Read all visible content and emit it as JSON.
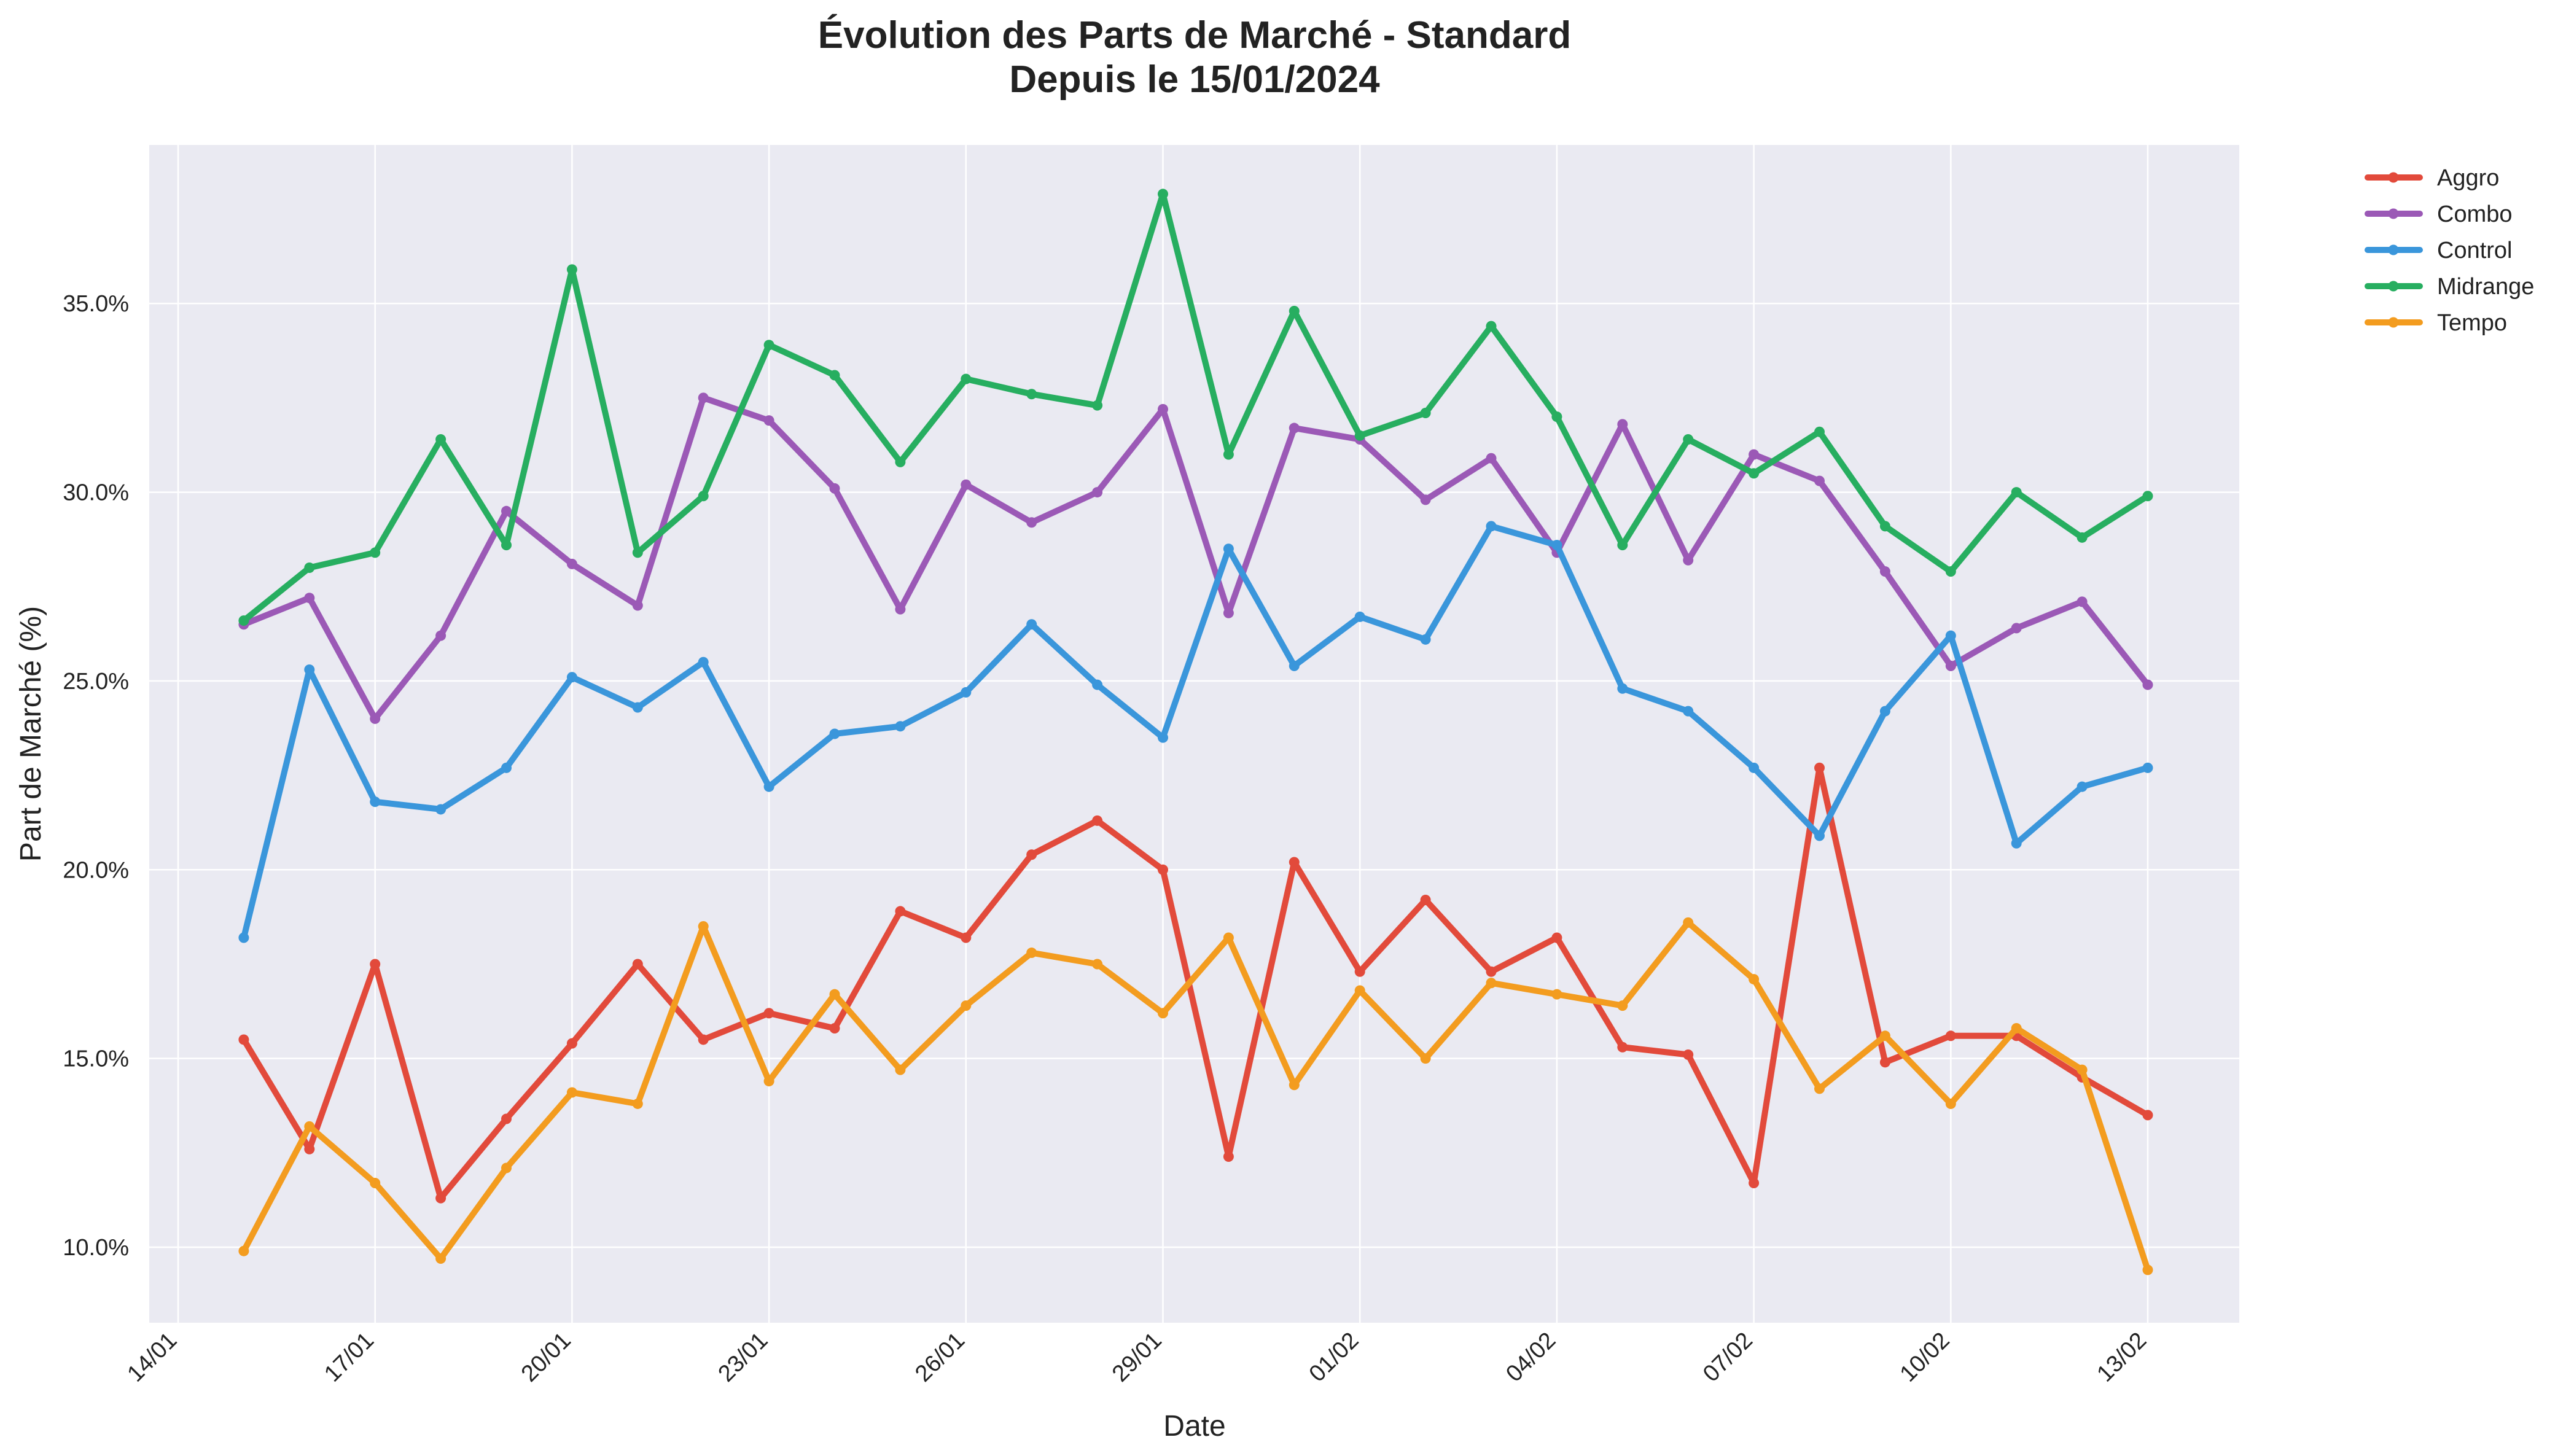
{
  "chart_data": {
    "type": "line",
    "title_line1": "Évolution des Parts de Marché - Standard",
    "title_line2": "Depuis le 15/01/2024",
    "xlabel": "Date",
    "ylabel": "Part de Marché (%)",
    "x_start": "2024-01-15",
    "x_ticks": [
      "14/01",
      "17/01",
      "20/01",
      "23/01",
      "26/01",
      "29/01",
      "01/02",
      "04/02",
      "07/02",
      "10/02",
      "13/02"
    ],
    "x": [
      "2024-01-15",
      "2024-01-16",
      "2024-01-17",
      "2024-01-18",
      "2024-01-19",
      "2024-01-20",
      "2024-01-21",
      "2024-01-22",
      "2024-01-23",
      "2024-01-24",
      "2024-01-25",
      "2024-01-26",
      "2024-01-27",
      "2024-01-28",
      "2024-01-29",
      "2024-01-30",
      "2024-01-31",
      "2024-02-01",
      "2024-02-02",
      "2024-02-03",
      "2024-02-04",
      "2024-02-05",
      "2024-02-06",
      "2024-02-07",
      "2024-02-08",
      "2024-02-09",
      "2024-02-10",
      "2024-02-11",
      "2024-02-12",
      "2024-02-13"
    ],
    "ylim": [
      8.0,
      39.2
    ],
    "y_ticks": [
      10,
      15,
      20,
      25,
      30,
      35
    ],
    "y_tick_labels": [
      "10.0%",
      "15.0%",
      "20.0%",
      "25.0%",
      "30.0%",
      "35.0%"
    ],
    "grid": true,
    "legend_position": "outside-top-right",
    "background_color": "#eaeaf2",
    "series": [
      {
        "name": "Aggro",
        "color": "#e24a3b",
        "values": [
          15.5,
          12.6,
          17.5,
          11.3,
          13.4,
          15.4,
          17.5,
          15.5,
          16.2,
          15.8,
          18.9,
          18.2,
          20.4,
          21.3,
          20.0,
          12.4,
          20.2,
          17.3,
          19.2,
          17.3,
          18.2,
          15.3,
          15.1,
          11.7,
          22.7,
          14.9,
          15.6,
          15.6,
          14.5,
          13.5
        ]
      },
      {
        "name": "Combo",
        "color": "#9b59b6",
        "values": [
          26.5,
          27.2,
          24.0,
          26.2,
          29.5,
          28.1,
          27.0,
          32.5,
          31.9,
          30.1,
          26.9,
          30.2,
          29.2,
          30.0,
          32.2,
          26.8,
          31.7,
          31.4,
          29.8,
          30.9,
          28.4,
          31.8,
          28.2,
          31.0,
          30.3,
          27.9,
          25.4,
          26.4,
          27.1,
          24.9
        ]
      },
      {
        "name": "Control",
        "color": "#3a96db",
        "values": [
          18.2,
          25.3,
          21.8,
          21.6,
          22.7,
          25.1,
          24.3,
          25.5,
          22.2,
          23.6,
          23.8,
          24.7,
          26.5,
          24.9,
          23.5,
          28.5,
          25.4,
          26.7,
          26.1,
          29.1,
          28.6,
          24.8,
          24.2,
          22.7,
          20.9,
          24.2,
          26.2,
          20.7,
          22.2,
          22.7
        ]
      },
      {
        "name": "Midrange",
        "color": "#27ae60",
        "values": [
          26.6,
          28.0,
          28.4,
          31.4,
          28.6,
          35.9,
          28.4,
          29.9,
          33.9,
          33.1,
          30.8,
          33.0,
          32.6,
          32.3,
          37.9,
          31.0,
          34.8,
          31.5,
          32.1,
          34.4,
          32.0,
          28.6,
          31.4,
          30.5,
          31.6,
          29.1,
          27.9,
          30.0,
          28.8,
          29.9
        ]
      },
      {
        "name": "Tempo",
        "color": "#f39c1f",
        "values": [
          9.9,
          13.2,
          11.7,
          9.7,
          12.1,
          14.1,
          13.8,
          18.5,
          14.4,
          16.7,
          14.7,
          16.4,
          17.8,
          17.5,
          16.2,
          18.2,
          14.3,
          16.8,
          15.0,
          17.0,
          16.7,
          16.4,
          18.6,
          17.1,
          14.2,
          15.6,
          13.8,
          15.8,
          14.7,
          9.4
        ]
      }
    ]
  }
}
